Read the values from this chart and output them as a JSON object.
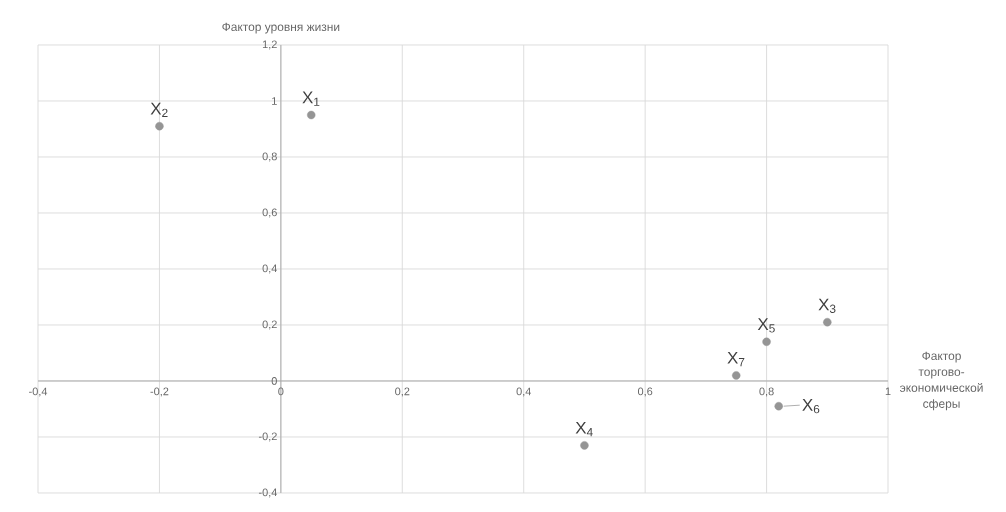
{
  "chart_data": {
    "type": "scatter",
    "xlabel": "Фактор торгово-экономической сферы",
    "ylabel": "Фактор уровня жизни",
    "x": [
      0.05,
      -0.2,
      0.9,
      0.5,
      0.8,
      0.82,
      0.75
    ],
    "values": [
      0.95,
      0.91,
      0.21,
      -0.23,
      0.14,
      -0.09,
      0.02
    ],
    "color": "#959595",
    "marker": "circle",
    "grid": true,
    "xlim": [
      -0.4,
      1
    ],
    "ylim": [
      -0.4,
      1.2
    ],
    "xticks": [
      {
        "value": -0.4,
        "label": "-0,4"
      },
      {
        "value": -0.2,
        "label": "-0,2"
      },
      0,
      {
        "value": 0.2,
        "label": "0,2"
      },
      {
        "value": 0.4,
        "label": "0,4"
      },
      {
        "value": 0.6,
        "label": "0,6"
      },
      {
        "value": 0.8,
        "label": "0,8"
      },
      1
    ],
    "yticks": [
      {
        "value": -0.4,
        "label": "-0,4"
      },
      {
        "value": -0.2,
        "label": "-0,2"
      },
      0,
      {
        "value": 0.2,
        "label": "0,2"
      },
      {
        "value": 0.4,
        "label": "0,4"
      },
      {
        "value": 0.6,
        "label": "0,6"
      },
      {
        "value": 0.8,
        "label": "0,8"
      },
      1,
      {
        "value": 1.2,
        "label": "1,2"
      }
    ],
    "annotations": [
      {
        "text": "X$_{1}$",
        "x": 0.05,
        "y": 0.95
      },
      {
        "text": "X$_{2}$",
        "x": -0.2,
        "y": 0.91
      },
      {
        "text": "X$_{3}$",
        "x": 0.9,
        "y": 0.21
      },
      {
        "text": "X$_{4}$",
        "x": 0.5,
        "y": -0.23
      },
      {
        "text": "X$_{5}$",
        "x": 0.8,
        "y": 0.14
      },
      {
        "text": "X$_{6}$",
        "x": 0.82,
        "y": -0.09
      },
      {
        "text": "X$_{7}$",
        "x": 0.75,
        "y": 0.02
      }
    ]
  }
}
